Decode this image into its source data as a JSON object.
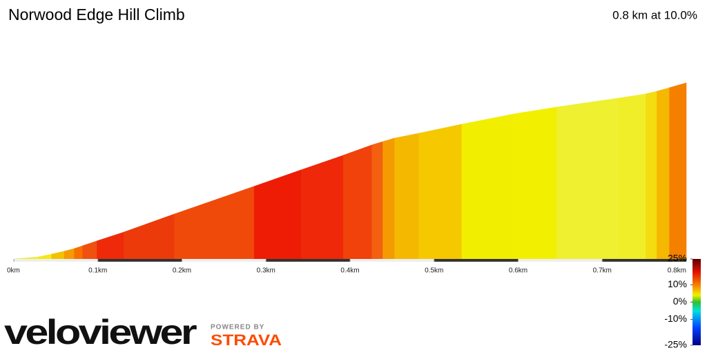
{
  "chart_data": {
    "type": "area",
    "title": "Norwood Edge Hill Climb",
    "subtitle": "0.8 km at 10.0%",
    "x": [
      0,
      0.029,
      0.045,
      0.06,
      0.072,
      0.082,
      0.099,
      0.131,
      0.191,
      0.286,
      0.342,
      0.392,
      0.426,
      0.439,
      0.453,
      0.482,
      0.533,
      0.595,
      0.646,
      0.72,
      0.752,
      0.765,
      0.78,
      0.8
    ],
    "values": [
      0,
      0.9,
      2.2,
      3.5,
      4.7,
      6.0,
      8.2,
      12.2,
      20.4,
      33.0,
      40.5,
      47.1,
      51.8,
      53.3,
      54.9,
      57.1,
      61.2,
      65.9,
      69.0,
      73.1,
      75.0,
      76.2,
      77.8,
      80.0
    ],
    "segment_colors": [
      "#eeee30",
      "#f5e818",
      "#f5c000",
      "#f59a00",
      "#f57000",
      "#f05010",
      "#ee2a0a",
      "#ec3a0a",
      "#f04a0a",
      "#ee1c05",
      "#ee2808",
      "#f0420a",
      "#f26010",
      "#f59a00",
      "#f5b800",
      "#f5c800",
      "#f2ee00",
      "#f2f000",
      "#eef030",
      "#f0ee28",
      "#f4dc10",
      "#f5b800",
      "#f58000"
    ],
    "xlim": [
      0,
      0.8
    ],
    "ylim": [
      0,
      80
    ],
    "xticks": [
      {
        "value": 0,
        "label": "0km"
      },
      {
        "value": 0.1,
        "label": "0.1km"
      },
      {
        "value": 0.2,
        "label": "0.2km"
      },
      {
        "value": 0.3,
        "label": "0.3km"
      },
      {
        "value": 0.4,
        "label": "0.4km"
      },
      {
        "value": 0.5,
        "label": "0.5km"
      },
      {
        "value": 0.6,
        "label": "0.6km"
      },
      {
        "value": 0.7,
        "label": "0.7km"
      },
      {
        "value": 0.8,
        "label": "0.8km"
      }
    ],
    "colorbar": {
      "lim": [
        -25,
        25
      ],
      "ticks": [
        {
          "value": 25,
          "label": "25%"
        },
        {
          "value": 10,
          "label": "10%"
        },
        {
          "value": 0,
          "label": "0%"
        },
        {
          "value": -10,
          "label": "-10%"
        },
        {
          "value": -25,
          "label": "-25%"
        }
      ]
    }
  },
  "branding": {
    "logo": "veloviewer",
    "powered": "POWERED BY",
    "strava": "STRAVA"
  }
}
